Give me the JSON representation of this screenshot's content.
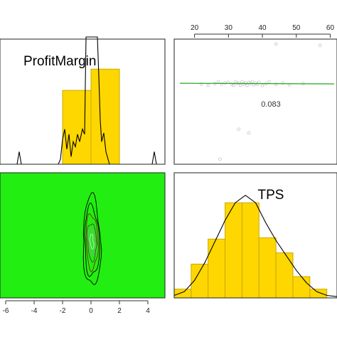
{
  "chart_data": [
    {
      "panel": "ProfitMargin-diagonal",
      "type": "bar",
      "title": "ProfitMargin",
      "x": {
        "ticks": [
          -6,
          -4,
          -2,
          0,
          2,
          4
        ],
        "range": [
          -6.4,
          5.2
        ]
      },
      "bins": [
        {
          "from": -2,
          "to": 0,
          "height": 0.59
        },
        {
          "from": 0,
          "to": 2,
          "height": 0.76
        }
      ],
      "density": [
        [
          -6.4,
          0
        ],
        [
          -5.2,
          0
        ],
        [
          -5.05,
          0.1
        ],
        [
          -4.9,
          0
        ],
        [
          -2.3,
          0
        ],
        [
          -2.15,
          0.04
        ],
        [
          -2.0,
          0.2
        ],
        [
          -1.85,
          0.28
        ],
        [
          -1.7,
          0.12
        ],
        [
          -1.55,
          0.24
        ],
        [
          -1.4,
          0.06
        ],
        [
          -1.25,
          0.18
        ],
        [
          -1.1,
          0.14
        ],
        [
          -0.95,
          0.24
        ],
        [
          -0.8,
          0.18
        ],
        [
          -0.6,
          0.28
        ],
        [
          -0.45,
          0.24
        ],
        [
          -0.35,
          1.05
        ],
        [
          -0.2,
          1.3
        ],
        [
          0.45,
          1.3
        ],
        [
          0.55,
          0.7
        ],
        [
          0.65,
          0.35
        ],
        [
          0.75,
          0.18
        ],
        [
          0.9,
          0.25
        ],
        [
          1.05,
          0.1
        ],
        [
          1.3,
          0
        ],
        [
          4.3,
          0
        ],
        [
          4.45,
          0.1
        ],
        [
          4.6,
          0
        ],
        [
          5.2,
          0
        ]
      ],
      "colors": {
        "bar": "#ffd700",
        "bar_edge": "#c8a800",
        "line": "#000000"
      }
    },
    {
      "panel": "scatter-upper",
      "type": "scatter",
      "x": {
        "ticks": [
          20,
          30,
          40,
          50,
          60
        ],
        "range": [
          14,
          62
        ]
      },
      "y": {
        "range": [
          0,
          1
        ]
      },
      "correlation_label": "0.083",
      "fit": {
        "y_start": 0.647,
        "y_end": 0.642
      },
      "points": [
        [
          22,
          0.64
        ],
        [
          24,
          0.63
        ],
        [
          26,
          0.645
        ],
        [
          27,
          0.66
        ],
        [
          28,
          0.64
        ],
        [
          29,
          0.65
        ],
        [
          30,
          0.655
        ],
        [
          31,
          0.64
        ],
        [
          31.5,
          0.63
        ],
        [
          32,
          0.66
        ],
        [
          32.5,
          0.645
        ],
        [
          33,
          0.65
        ],
        [
          33.5,
          0.63
        ],
        [
          34,
          0.66
        ],
        [
          34.5,
          0.64
        ],
        [
          35,
          0.65
        ],
        [
          35.5,
          0.63
        ],
        [
          36,
          0.655
        ],
        [
          36.5,
          0.645
        ],
        [
          37,
          0.66
        ],
        [
          37.5,
          0.635
        ],
        [
          38,
          0.65
        ],
        [
          38.5,
          0.64
        ],
        [
          39,
          0.655
        ],
        [
          40,
          0.63
        ],
        [
          41,
          0.645
        ],
        [
          42,
          0.66
        ],
        [
          44,
          0.64
        ],
        [
          46,
          0.65
        ],
        [
          48,
          0.635
        ],
        [
          52,
          0.645
        ],
        [
          33,
          0.28
        ],
        [
          36,
          0.25
        ],
        [
          27.5,
          0.04
        ],
        [
          44,
          0.96
        ],
        [
          57,
          0.95
        ]
      ],
      "colors": {
        "point": "#bbbbbb",
        "fit": "#22aa22"
      }
    },
    {
      "panel": "density-lower",
      "type": "heatmap",
      "x": {
        "ticks": [
          -6,
          -4,
          -2,
          0,
          2,
          4
        ],
        "range": [
          -6.4,
          5.2
        ]
      },
      "background": "#22ee11",
      "contour_center": [
        0.05,
        0.45
      ],
      "contour_levels": [
        {
          "rx": 0.12,
          "ry": 0.06,
          "color": "#dddddd"
        },
        {
          "rx": 0.22,
          "ry": 0.11,
          "color": "#999999"
        },
        {
          "rx": 0.32,
          "ry": 0.15,
          "color": "#444444"
        },
        {
          "rx": 0.42,
          "ry": 0.22,
          "color": "#7a2a00"
        },
        {
          "rx": 0.52,
          "ry": 0.28,
          "color": "#000000"
        },
        {
          "rx": 0.62,
          "ry": 0.36,
          "color": "#000000"
        }
      ]
    },
    {
      "panel": "TPS-diagonal",
      "type": "bar",
      "title": "TPS",
      "x": {
        "range": [
          14,
          62
        ]
      },
      "bins": [
        {
          "from": 14,
          "to": 19,
          "height": 0.07
        },
        {
          "from": 19,
          "to": 24,
          "height": 0.27
        },
        {
          "from": 24,
          "to": 29,
          "height": 0.47
        },
        {
          "from": 29,
          "to": 34,
          "height": 0.76
        },
        {
          "from": 34,
          "to": 39,
          "height": 0.76
        },
        {
          "from": 39,
          "to": 44,
          "height": 0.48
        },
        {
          "from": 44,
          "to": 49,
          "height": 0.36
        },
        {
          "from": 49,
          "to": 54,
          "height": 0.17
        },
        {
          "from": 54,
          "to": 59,
          "height": 0.07
        }
      ],
      "density": [
        [
          14,
          0.02
        ],
        [
          17,
          0.05
        ],
        [
          20,
          0.14
        ],
        [
          23,
          0.28
        ],
        [
          26,
          0.45
        ],
        [
          29,
          0.62
        ],
        [
          32,
          0.76
        ],
        [
          35,
          0.82
        ],
        [
          38,
          0.76
        ],
        [
          41,
          0.6
        ],
        [
          44,
          0.46
        ],
        [
          47,
          0.34
        ],
        [
          50,
          0.22
        ],
        [
          53,
          0.12
        ],
        [
          56,
          0.05
        ],
        [
          59,
          0.02
        ],
        [
          62,
          0.01
        ]
      ],
      "colors": {
        "bar": "#ffd700",
        "bar_edge": "#c8a800",
        "line": "#000000"
      }
    }
  ]
}
